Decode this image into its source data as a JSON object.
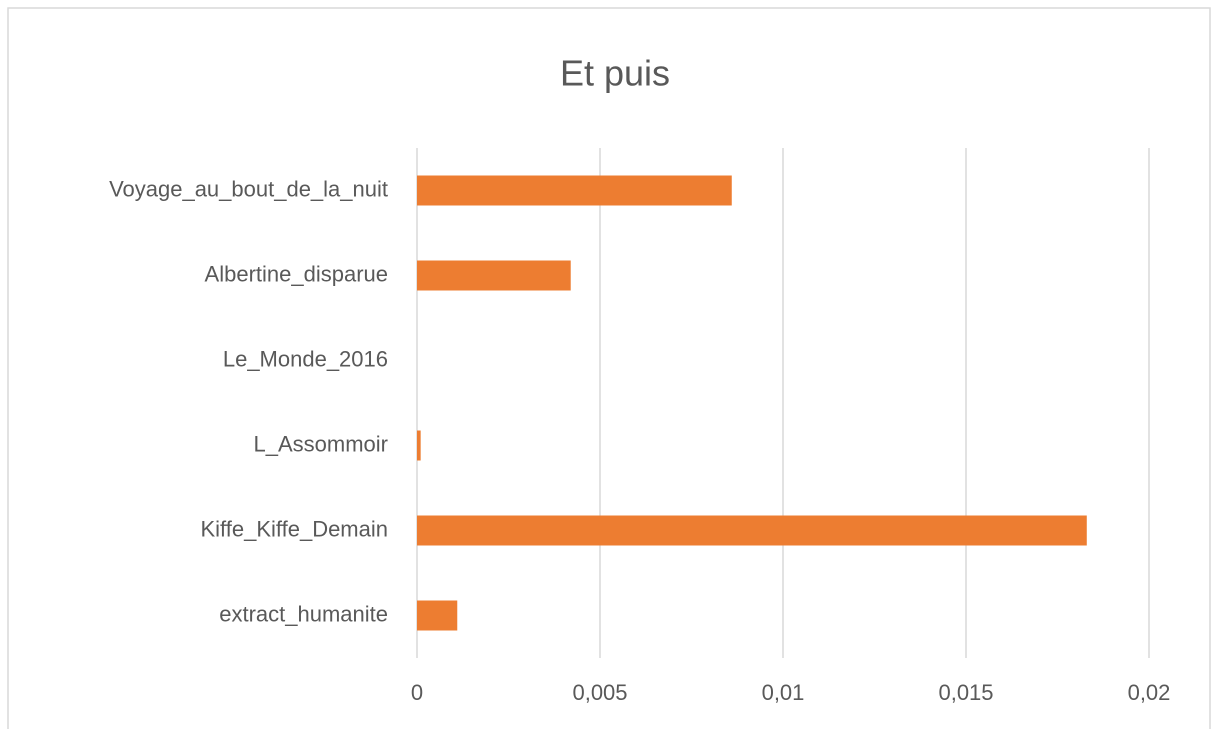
{
  "chart_data": {
    "type": "bar",
    "orientation": "horizontal",
    "title": "Et puis",
    "categories": [
      "Voyage_au_bout_de_la_nuit",
      "Albertine_disparue",
      "Le_Monde_2016",
      "L_Assommoir",
      "Kiffe_Kiffe_Demain",
      "extract_humanite"
    ],
    "values": [
      0.0086,
      0.0042,
      0,
      0.0001,
      0.0183,
      0.0011
    ],
    "color": "#ed7d31",
    "xlim": [
      0,
      0.02
    ],
    "xticks": [
      0,
      {
        "value": 0.005,
        "label": "0,005"
      },
      {
        "value": 0.01,
        "label": "0,01"
      },
      {
        "value": 0.015,
        "label": "0,015"
      },
      {
        "value": 0.02,
        "label": "0,02"
      }
    ],
    "grid": true
  }
}
